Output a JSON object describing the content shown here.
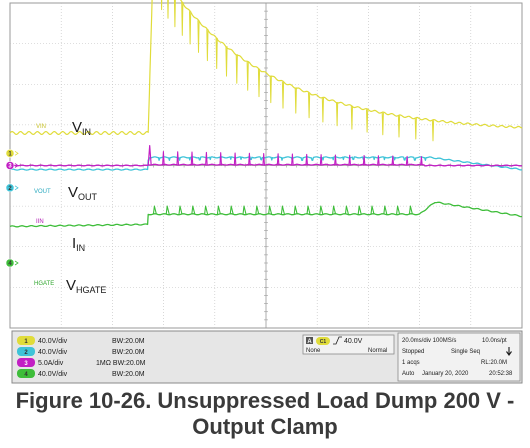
{
  "figure": {
    "caption_line1": "Figure 10-26. Unsuppressed Load Dump 200 V -",
    "caption_line2": "Output Clamp"
  },
  "colors": {
    "screen_bg": "#ffffff",
    "grid": "#bfbfbf",
    "ch1": "#e0dc3a",
    "ch2": "#3ec3d8",
    "ch3": "#c21fc4",
    "ch4": "#3ebd3a",
    "panel_bg": "#e6e6e6",
    "panel_border": "#8a8a8a"
  },
  "chart_data": {
    "type": "line",
    "grid": true,
    "time_div": "20.0ms/div",
    "divisions_x": 10,
    "divisions_y": 8,
    "series": [
      {
        "name": "VIN",
        "marker_label": "VIN",
        "name_label": "V",
        "name_sub": "IN",
        "channel": "1",
        "color_key": "ch1",
        "scale": "40.0V/div",
        "bandwidth": "BW:20.0M",
        "baseline_div": 0.8,
        "peak_div": 5.2,
        "event_time_div": 2.7,
        "decay_div": 2.1,
        "spike_count": 26,
        "spike_period_div": 0.12,
        "spike_depth_div": 0.9
      },
      {
        "name": "VOUT",
        "marker_label": "VOUT",
        "name_label": "V",
        "name_sub": "OUT",
        "channel": "2",
        "color_key": "ch2",
        "scale": "40.0V/div",
        "bandwidth": "BW:20.0M",
        "baseline_div": -0.1,
        "plateau_div": 0.2,
        "event_time_div": 2.7,
        "recovery_time_div": 8.2
      },
      {
        "name": "IIN",
        "marker_label": "IIN",
        "name_label": "I",
        "name_sub": "IN",
        "channel": "3",
        "color_key": "ch3",
        "scale": "5.0A/div",
        "bandwidth": "1MΩ BW:20.0M",
        "baseline_div": 0,
        "spike_div": 0.35,
        "event_time_div": 2.7,
        "end_time_div": 8.1,
        "spike_count": 20,
        "spike_period_div": 0.28
      },
      {
        "name": "VHGATE",
        "marker_label": "HGATE",
        "name_label": "V",
        "name_sub": "HGATE",
        "channel": "4",
        "color_key": "ch4",
        "scale": "40.0V/div",
        "bandwidth": "BW:20.0M",
        "baseline_div": -1.5,
        "plateau_div": -1.2,
        "event_time_div": 2.7,
        "step_time_div": 8.0,
        "step_div": -0.9,
        "spike_count": 22,
        "spike_period_div": 0.25
      }
    ]
  },
  "status": {
    "channels": [
      {
        "num": "1",
        "scale": "40.0V/div",
        "bw": "BW:20.0M"
      },
      {
        "num": "2",
        "scale": "40.0V/div",
        "bw": "BW:20.0M"
      },
      {
        "num": "3",
        "scale": "5.0A/div",
        "bw": "1MΩ BW:20.0M"
      },
      {
        "num": "4",
        "scale": "40.0V/div",
        "bw": "BW:20.0M"
      }
    ],
    "trigger": {
      "badge": "A",
      "channel": "C1",
      "level": "40.0V",
      "coupling": "None",
      "mode": "Normal"
    },
    "acq": {
      "timebase": "20.0ms/div 100MS/s",
      "resolution": "10.0ns/pt",
      "state": "Stopped",
      "seq": "Single Seq",
      "acqs": "1 acqs",
      "record": "RL:20.0M",
      "mode": "Auto",
      "date": "January 20, 2020",
      "time": "20:52:38"
    }
  }
}
